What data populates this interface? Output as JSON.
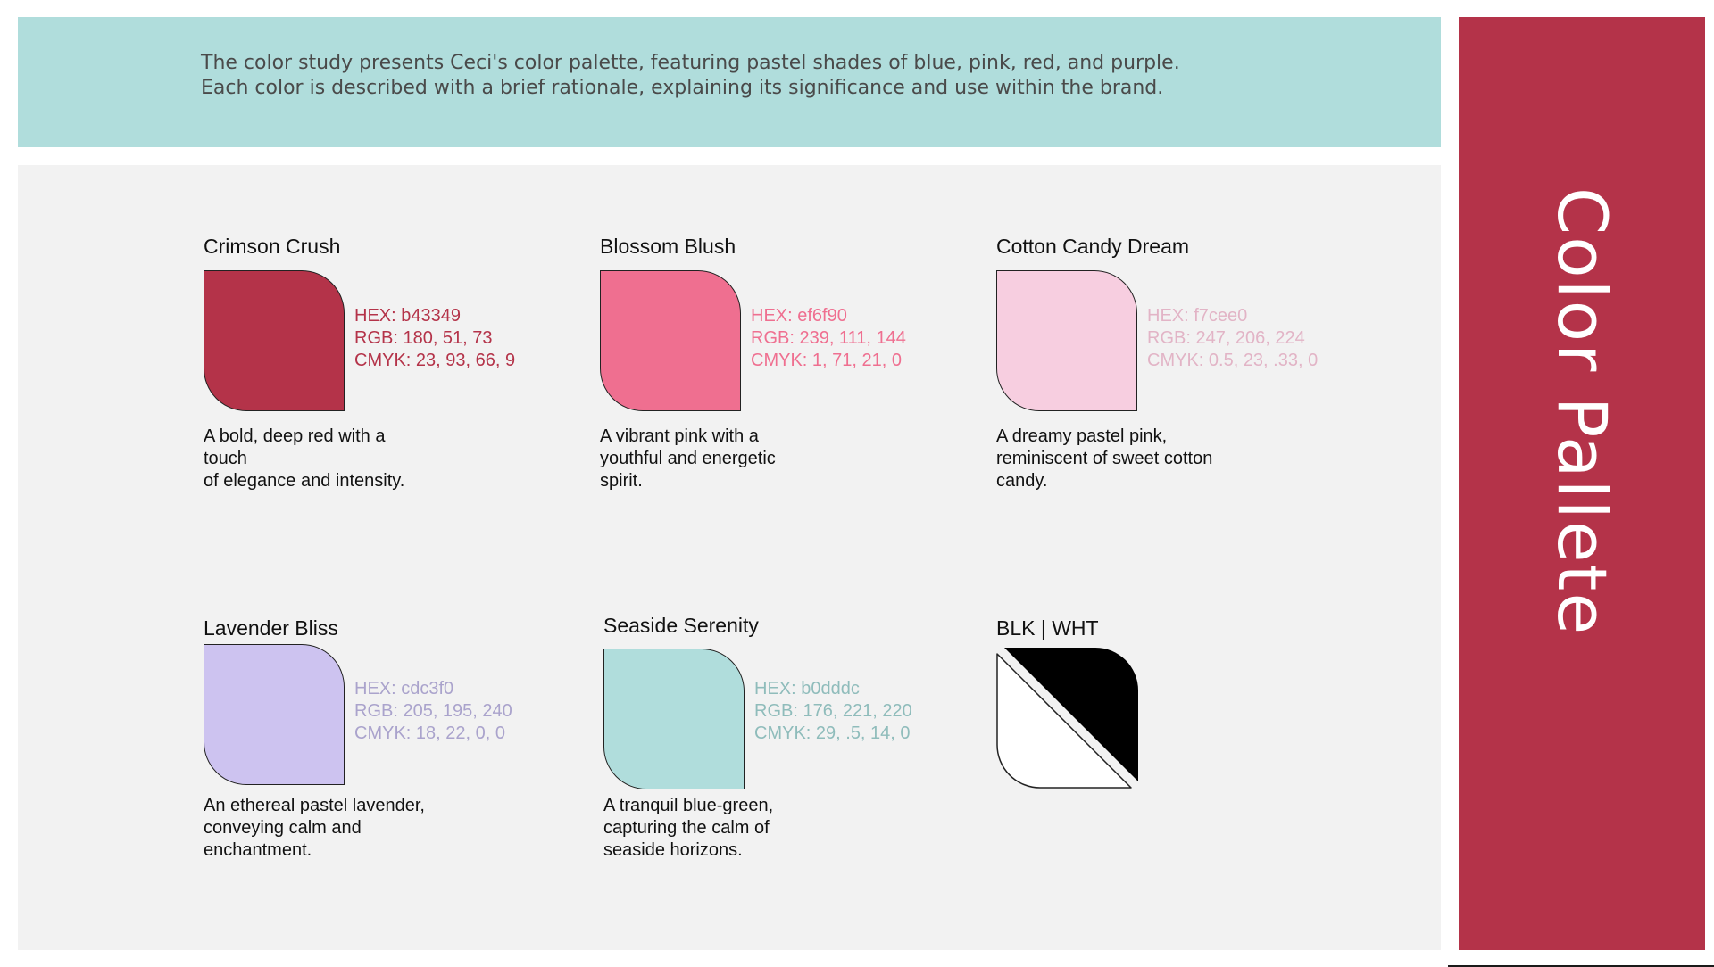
{
  "intro": {
    "line1": "The color study presents Ceci's color palette, featuring pastel shades of blue, pink, red, and purple.",
    "line2": "Each color is described with a brief rationale, explaining its significance and use within the brand."
  },
  "sidebar": {
    "title": "Color Pallete",
    "color": "#b43349"
  },
  "colors": [
    {
      "name": "Crimson Crush",
      "swatch": "#b43349",
      "text_color": "#b43349",
      "hex": "HEX: b43349",
      "rgb": "RGB: 180, 51, 73",
      "cmyk": "CMYK: 23, 93, 66, 9",
      "desc": [
        "A bold, deep red with a",
        "touch",
        "of elegance and intensity."
      ]
    },
    {
      "name": "Blossom Blush",
      "swatch": "#ef6f90",
      "text_color": "#ef6f90",
      "hex": "HEX: ef6f90",
      "rgb": "RGB: 239, 111, 144",
      "cmyk": "CMYK: 1, 71, 21, 0",
      "desc": [
        "A vibrant pink with a",
        "youthful and energetic",
        "spirit."
      ]
    },
    {
      "name": "Cotton Candy Dream",
      "swatch": "#f7cee0",
      "text_color": "#e2b4c6",
      "hex": "HEX: f7cee0",
      "rgb": "RGB: 247, 206, 224",
      "cmyk": "CMYK: 0.5, 23, .33, 0",
      "desc": [
        "A dreamy pastel pink,",
        "reminiscent of sweet cotton",
        "candy."
      ]
    },
    {
      "name": "Lavender Bliss",
      "swatch": "#cdc3f0",
      "text_color": "#aaa3cc",
      "hex": "HEX: cdc3f0",
      "rgb": "RGB: 205, 195, 240",
      "cmyk": "CMYK: 18, 22, 0, 0",
      "desc": [
        "An ethereal pastel lavender,",
        "conveying calm and",
        "enchantment."
      ]
    },
    {
      "name": "Seaside Serenity",
      "swatch": "#b0dddc",
      "text_color": "#8fbcbb",
      "hex": "HEX: b0dddc",
      "rgb": "RGB: 176, 221, 220",
      "cmyk": "CMYK: 29, .5, 14, 0",
      "desc": [
        "A tranquil blue-green,",
        "capturing the calm of",
        "seaside horizons."
      ]
    }
  ],
  "blk_wht": {
    "name": "BLK | WHT",
    "black": "#000000",
    "white": "#ffffff"
  }
}
